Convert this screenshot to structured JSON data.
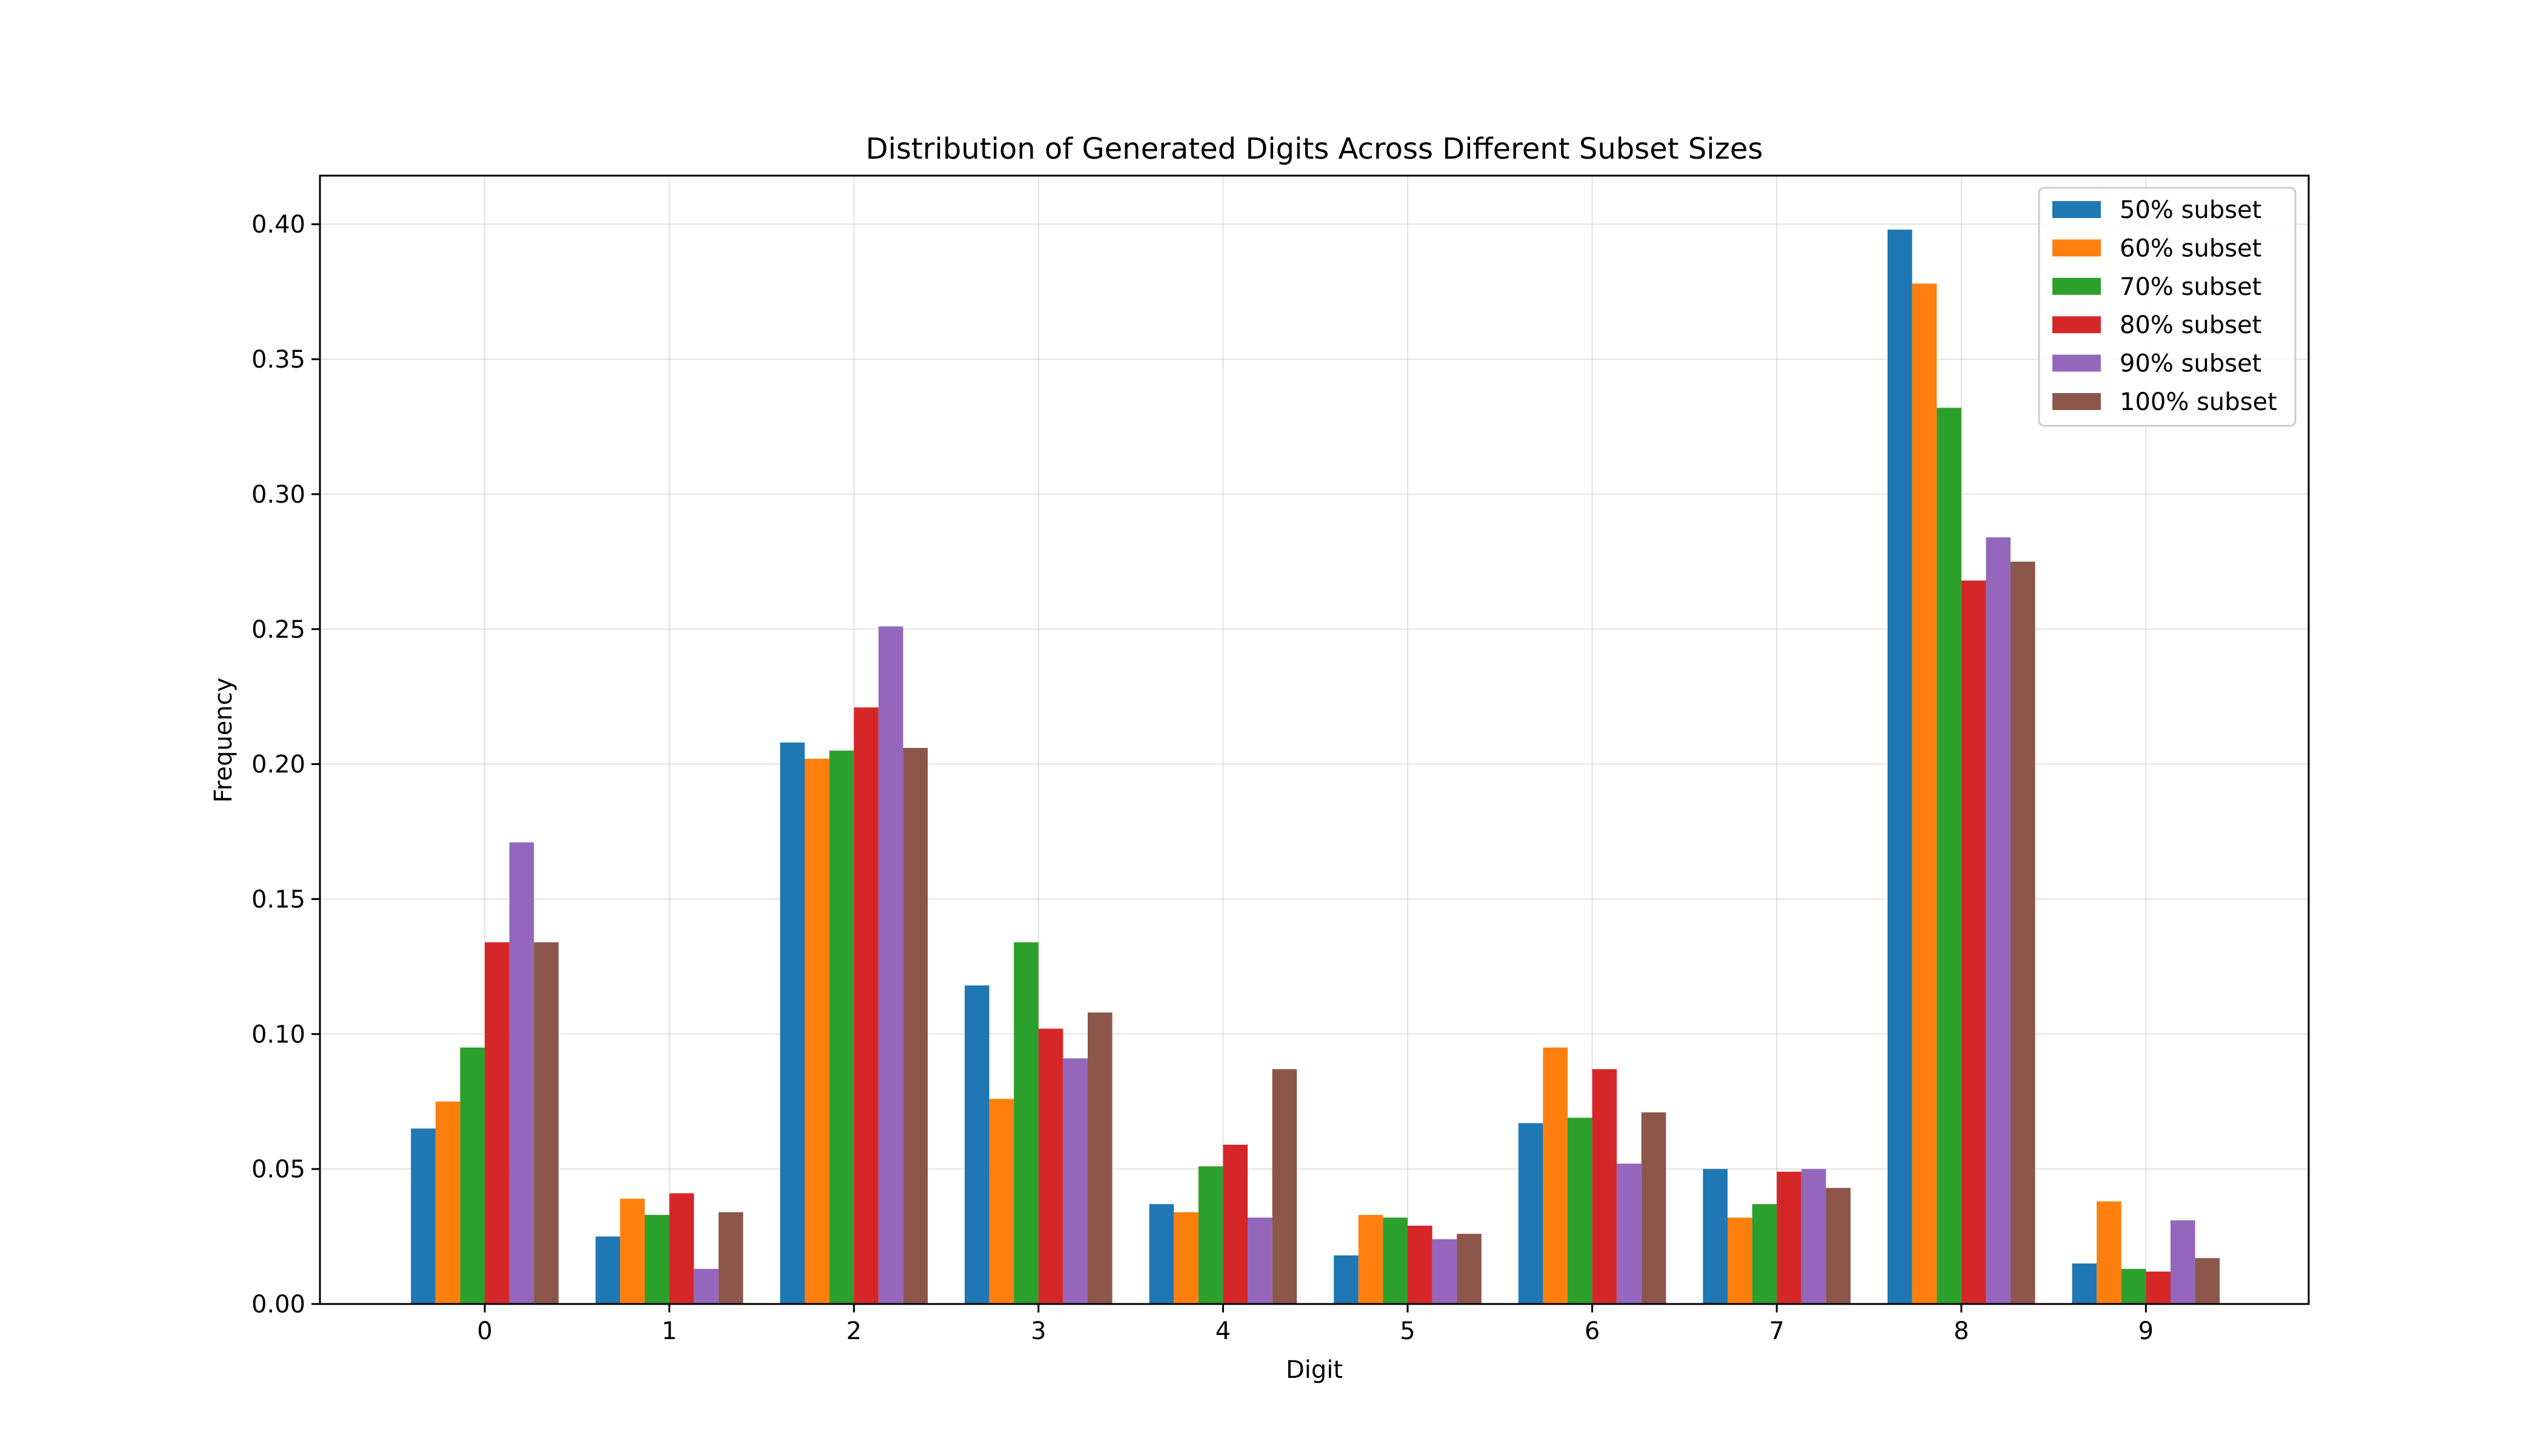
{
  "chart_data": {
    "type": "bar",
    "title": "Distribution of Generated Digits Across Different Subset Sizes",
    "xlabel": "Digit",
    "ylabel": "Frequency",
    "categories": [
      "0",
      "1",
      "2",
      "3",
      "4",
      "5",
      "6",
      "7",
      "8",
      "9"
    ],
    "ylim": [
      0,
      0.418
    ],
    "yticks": [
      0.0,
      0.05,
      0.1,
      0.15,
      0.2,
      0.25,
      0.3,
      0.35,
      0.4
    ],
    "ytick_labels": [
      "0.00",
      "0.05",
      "0.10",
      "0.15",
      "0.20",
      "0.25",
      "0.30",
      "0.35",
      "0.40"
    ],
    "grid": true,
    "legend_position": "top-right",
    "series": [
      {
        "name": "50% subset",
        "color": "#1f77b4",
        "values": [
          0.065,
          0.025,
          0.208,
          0.118,
          0.037,
          0.018,
          0.067,
          0.05,
          0.398,
          0.015
        ]
      },
      {
        "name": "60% subset",
        "color": "#ff7f0e",
        "values": [
          0.075,
          0.039,
          0.202,
          0.076,
          0.034,
          0.033,
          0.095,
          0.032,
          0.378,
          0.038
        ]
      },
      {
        "name": "70% subset",
        "color": "#2ca02c",
        "values": [
          0.095,
          0.033,
          0.205,
          0.134,
          0.051,
          0.032,
          0.069,
          0.037,
          0.332,
          0.013
        ]
      },
      {
        "name": "80% subset",
        "color": "#d62728",
        "values": [
          0.134,
          0.041,
          0.221,
          0.102,
          0.059,
          0.029,
          0.087,
          0.049,
          0.268,
          0.012
        ]
      },
      {
        "name": "90% subset",
        "color": "#9467bd",
        "values": [
          0.171,
          0.013,
          0.251,
          0.091,
          0.032,
          0.024,
          0.052,
          0.05,
          0.284,
          0.031
        ]
      },
      {
        "name": "100% subset",
        "color": "#8c564b",
        "values": [
          0.134,
          0.034,
          0.206,
          0.108,
          0.087,
          0.026,
          0.071,
          0.043,
          0.275,
          0.017
        ]
      }
    ]
  }
}
